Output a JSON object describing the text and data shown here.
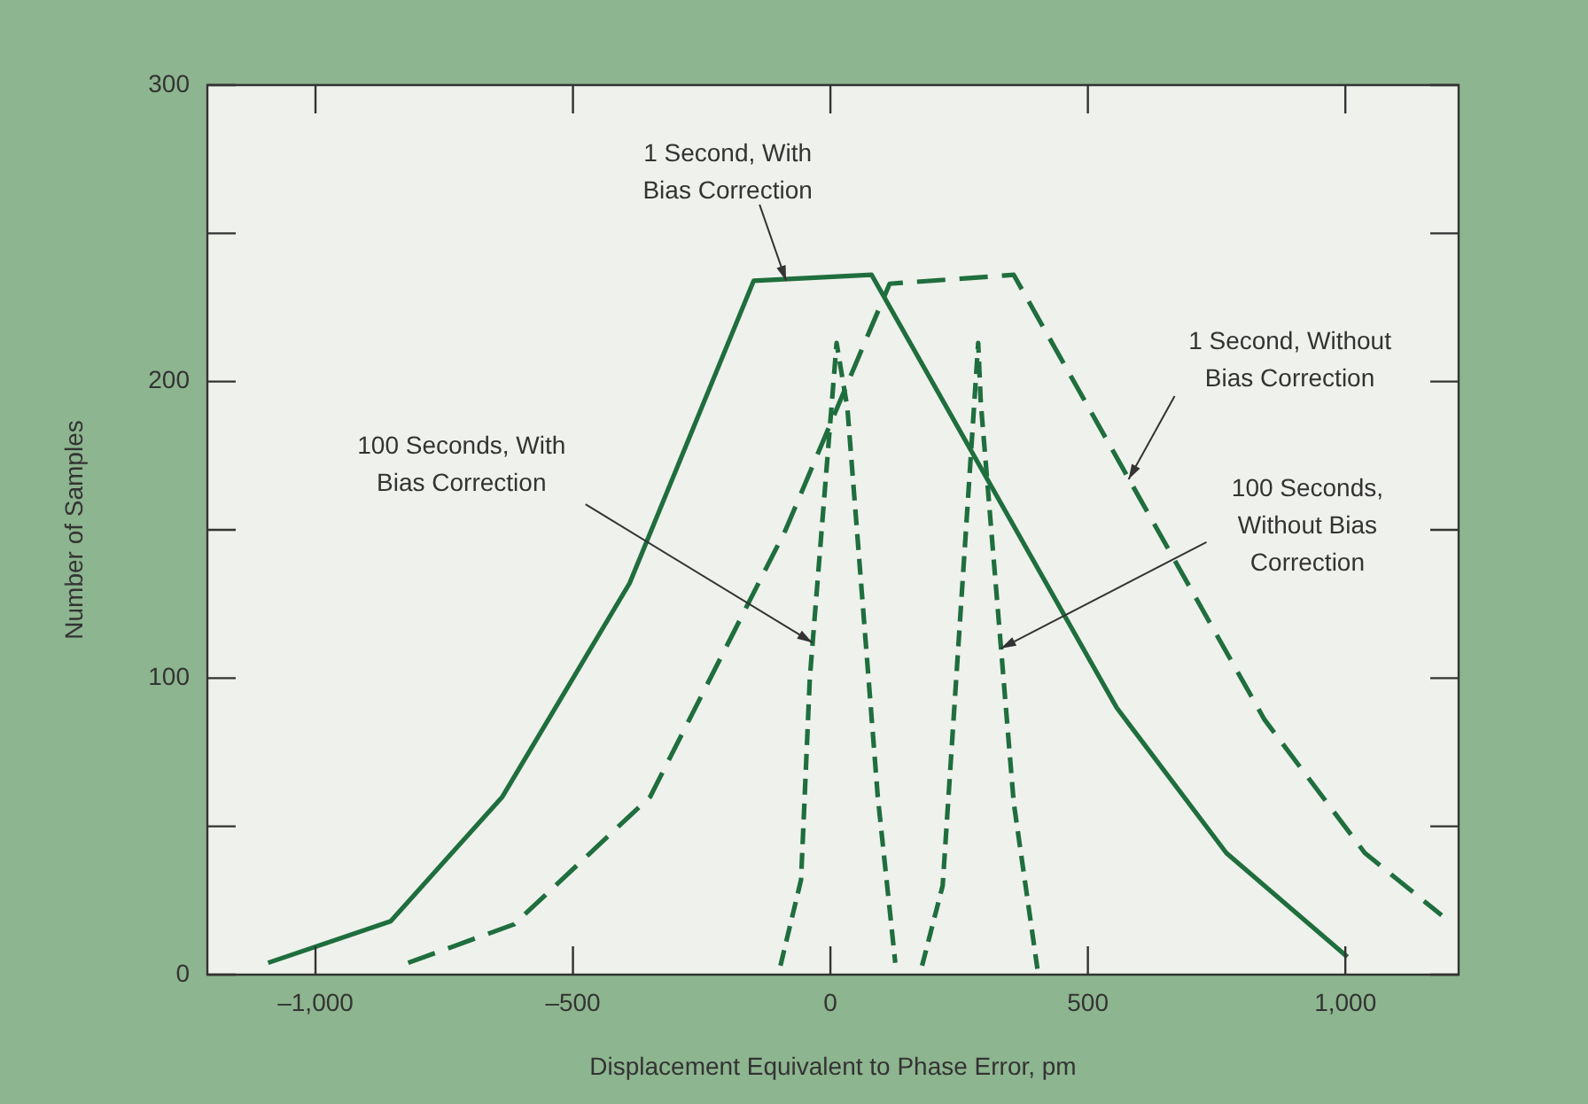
{
  "chart_data": {
    "type": "line",
    "xlabel": "Displacement Equivalent to Phase Error, pm",
    "ylabel": "Number of Samples",
    "xlim": [
      -1210,
      1220
    ],
    "ylim": [
      0,
      300
    ],
    "xticks": [
      {
        "value": -1000,
        "label": "–1,000"
      },
      {
        "value": -500,
        "label": "–500"
      },
      0,
      500,
      {
        "value": 1000,
        "label": "1,000"
      }
    ],
    "yticks": [
      0,
      {
        "value": 50,
        "label": null
      },
      100,
      {
        "value": 150,
        "label": null
      },
      200,
      {
        "value": 250,
        "label": null
      },
      300
    ],
    "grid": false,
    "legend": false,
    "marker": "none",
    "series": [
      {
        "color": "#1f6e3e",
        "line_style": "solid",
        "x": [
          -1092,
          -854,
          -637,
          -390,
          -149,
          80,
          556,
          769,
          1004
        ],
        "values": [
          4,
          18,
          60,
          132,
          234,
          236,
          90,
          41,
          6
        ]
      },
      {
        "color": "#1f6e3e",
        "line_style": "dashed",
        "x": [
          -820,
          -614,
          -350,
          -87,
          115,
          356,
          843,
          1038,
          1187
        ],
        "values": [
          4,
          17,
          60,
          150,
          233,
          236,
          86,
          41,
          20
        ]
      },
      {
        "color": "#1f6e3e",
        "line_style": "dashed",
        "x": [
          -97,
          -57,
          -40,
          12,
          33,
          92,
          126
        ],
        "values": [
          3,
          32,
          100,
          213,
          191,
          60,
          4
        ]
      },
      {
        "color": "#1f6e3e",
        "line_style": "dashed",
        "x": [
          178,
          218,
          287,
          292,
          356,
          402
        ],
        "values": [
          3,
          30,
          213,
          193,
          58,
          2
        ]
      }
    ],
    "annotations": [
      {
        "text": "1 Second, With Bias Correction",
        "x": -86,
        "y": 234
      },
      {
        "text": "1 Second, Without Bias Correction",
        "x": 579,
        "y": 167
      },
      {
        "text": "100 Seconds, With Bias Correction",
        "x": -35,
        "y": 112
      },
      {
        "text": "100 Seconds, Without Bias Correction",
        "x": 331,
        "y": 110
      }
    ]
  }
}
